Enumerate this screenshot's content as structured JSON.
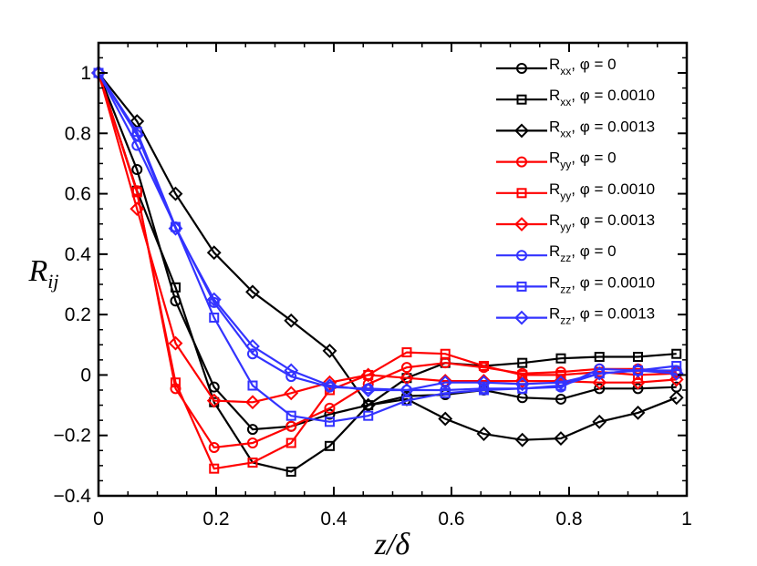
{
  "chart_data": {
    "type": "line",
    "title": "",
    "xlabel": "z/δ",
    "ylabel": "R_ij",
    "ylabel_main": "R",
    "ylabel_sub": "ij",
    "xlim": [
      0,
      1
    ],
    "ylim": [
      -0.4,
      1.1
    ],
    "xticks": [
      0,
      0.2,
      0.4,
      0.6,
      0.8,
      1
    ],
    "xtick_labels": [
      "0",
      "0.2",
      "0.4",
      "0.6",
      "0.8",
      "1"
    ],
    "yticks": [
      -0.4,
      -0.2,
      0,
      0.2,
      0.4,
      0.6,
      0.8,
      1
    ],
    "ytick_labels": [
      "−0.4",
      "−0.2",
      "0",
      "0.2",
      "0.4",
      "0.6",
      "0.8",
      "1"
    ],
    "grid": false,
    "legend_position": "top-right",
    "x": [
      0,
      0.0655,
      0.131,
      0.1965,
      0.262,
      0.3275,
      0.393,
      0.4585,
      0.524,
      0.5895,
      0.655,
      0.7205,
      0.786,
      0.8515,
      0.917,
      0.9825
    ],
    "series": [
      {
        "name": "R_xx, φ = 0",
        "legend_main": "R",
        "legend_sub": "xx",
        "legend_rest": ", φ = 0",
        "color": "#000000",
        "marker": "circle",
        "values": [
          1,
          0.68,
          0.245,
          -0.04,
          -0.18,
          -0.17,
          -0.13,
          -0.1,
          -0.07,
          -0.065,
          -0.05,
          -0.075,
          -0.08,
          -0.045,
          -0.045,
          -0.04
        ]
      },
      {
        "name": "R_xx, φ = 0.0010",
        "legend_main": "R",
        "legend_sub": "xx",
        "legend_rest": ", φ = 0.0010",
        "color": "#000000",
        "marker": "square",
        "values": [
          1,
          0.61,
          0.29,
          -0.09,
          -0.29,
          -0.32,
          -0.235,
          -0.1,
          -0.01,
          0.04,
          0.03,
          0.04,
          0.055,
          0.06,
          0.06,
          0.07
        ]
      },
      {
        "name": "R_xx, φ = 0.0013",
        "legend_main": "R",
        "legend_sub": "xx",
        "legend_rest": ", φ = 0.0013",
        "color": "#000000",
        "marker": "diamond",
        "values": [
          1,
          0.84,
          0.6,
          0.405,
          0.275,
          0.18,
          0.08,
          -0.1,
          -0.08,
          -0.145,
          -0.195,
          -0.215,
          -0.21,
          -0.155,
          -0.125,
          -0.075
        ]
      },
      {
        "name": "R_yy, φ = 0",
        "legend_main": "R",
        "legend_sub": "yy",
        "legend_rest": ", φ = 0",
        "color": "#ff0000",
        "marker": "circle",
        "values": [
          1,
          0.61,
          -0.045,
          -0.24,
          -0.225,
          -0.17,
          -0.11,
          -0.03,
          0.025,
          0.04,
          0.025,
          0.005,
          0.01,
          0.02,
          0.02,
          0.01
        ]
      },
      {
        "name": "R_yy, φ = 0.0010",
        "legend_main": "R",
        "legend_sub": "yy",
        "legend_rest": ", φ = 0.0010",
        "color": "#ff0000",
        "marker": "square",
        "values": [
          1,
          0.605,
          -0.025,
          -0.31,
          -0.29,
          -0.225,
          -0.05,
          0.0,
          0.075,
          0.07,
          0.03,
          0.0,
          0.0,
          0.01,
          0.0,
          0.005
        ]
      },
      {
        "name": "R_yy, φ = 0.0013",
        "legend_main": "R",
        "legend_sub": "yy",
        "legend_rest": ", φ = 0.0013",
        "color": "#ff0000",
        "marker": "diamond",
        "values": [
          1,
          0.55,
          0.105,
          -0.085,
          -0.09,
          -0.06,
          -0.025,
          0.0,
          -0.01,
          -0.02,
          -0.02,
          -0.02,
          -0.02,
          -0.025,
          -0.025,
          -0.015
        ]
      },
      {
        "name": "R_zz, φ = 0",
        "legend_main": "R",
        "legend_sub": "zz",
        "legend_rest": ", φ = 0",
        "color": "#3333ff",
        "marker": "circle",
        "values": [
          1,
          0.76,
          0.49,
          0.24,
          0.07,
          -0.005,
          -0.04,
          -0.045,
          -0.05,
          -0.05,
          -0.045,
          -0.045,
          -0.04,
          0.02,
          0.015,
          0.015
        ]
      },
      {
        "name": "R_zz, φ = 0.0010",
        "legend_main": "R",
        "legend_sub": "zz",
        "legend_rest": ", φ = 0.0010",
        "color": "#3333ff",
        "marker": "square",
        "values": [
          1,
          0.805,
          0.49,
          0.19,
          -0.035,
          -0.135,
          -0.155,
          -0.135,
          -0.085,
          -0.06,
          -0.05,
          -0.045,
          -0.035,
          0.005,
          0.015,
          0.03
        ]
      },
      {
        "name": "R_zz, φ = 0.0013",
        "legend_main": "R",
        "legend_sub": "zz",
        "legend_rest": ", φ = 0.0013",
        "color": "#3333ff",
        "marker": "diamond",
        "values": [
          1,
          0.795,
          0.485,
          0.25,
          0.095,
          0.015,
          -0.035,
          -0.05,
          -0.05,
          -0.025,
          -0.025,
          -0.03,
          -0.025,
          0.005,
          0.015,
          0.005
        ]
      }
    ]
  }
}
